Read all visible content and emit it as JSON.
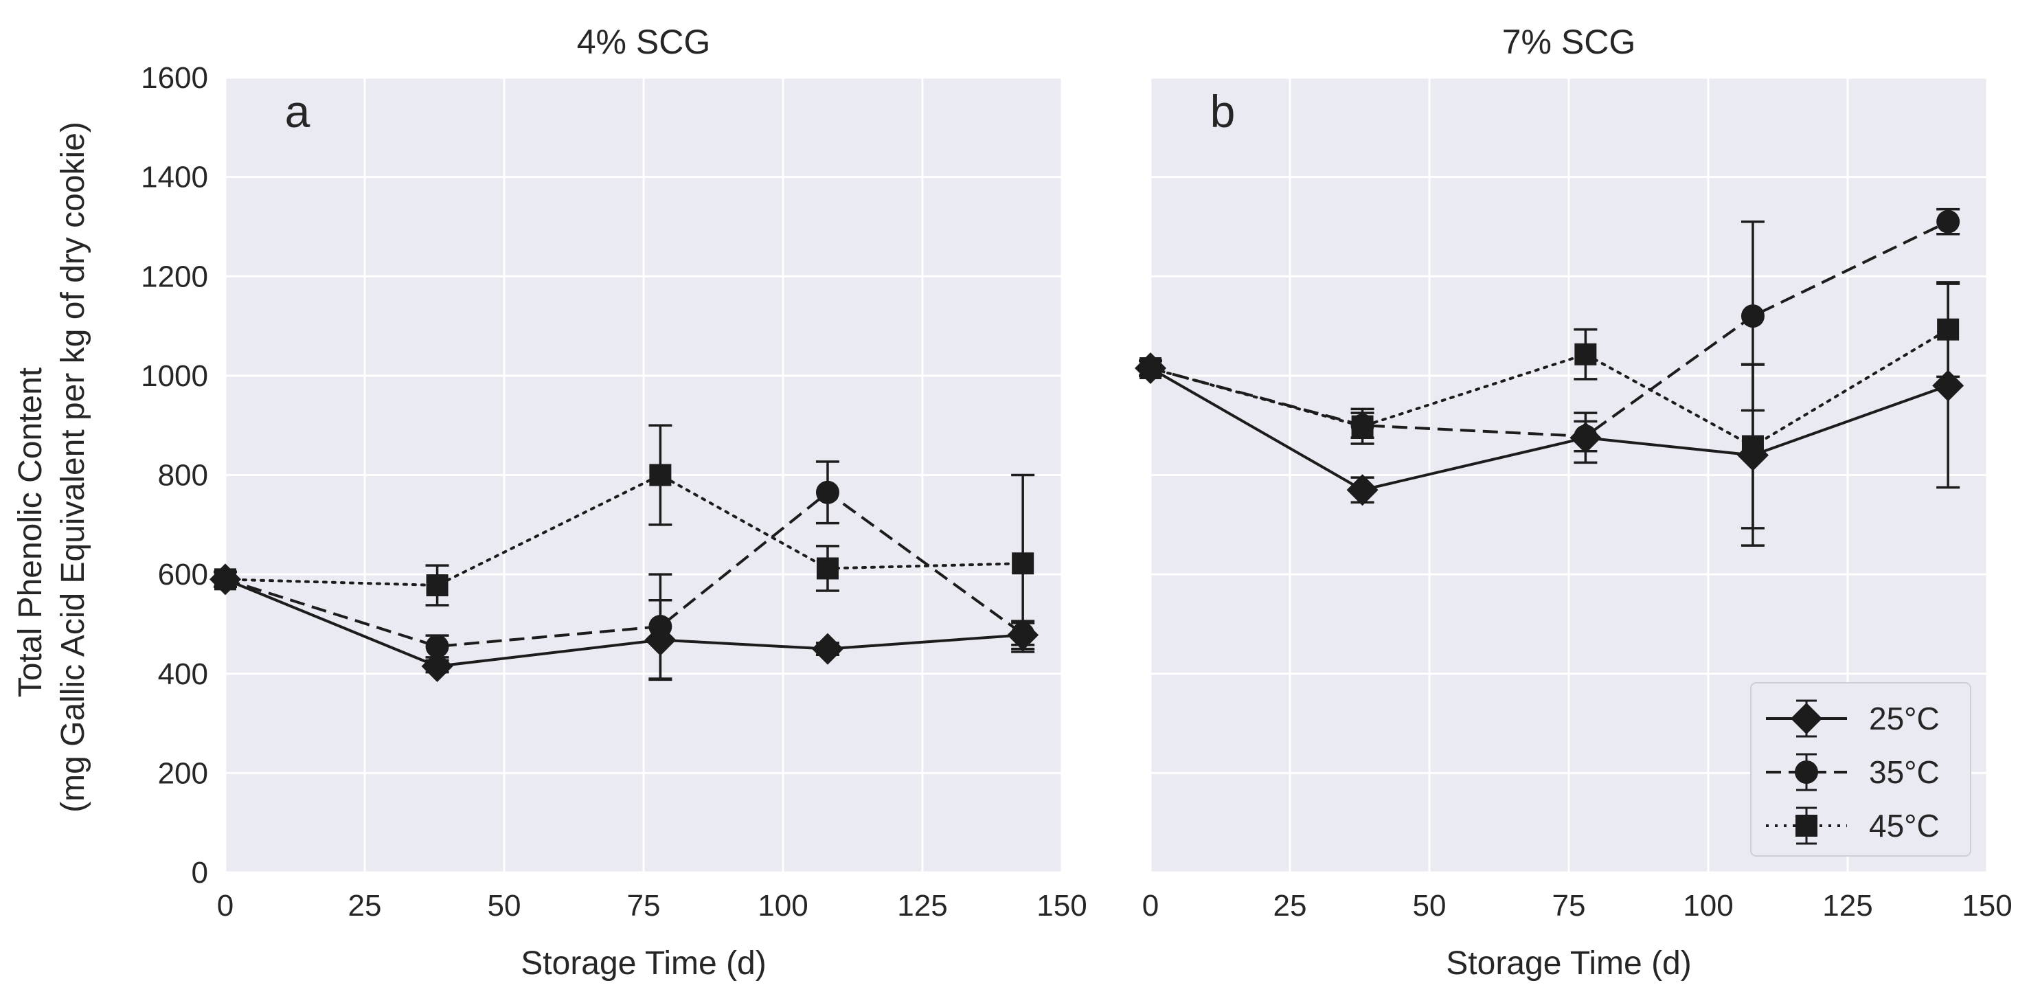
{
  "figure": {
    "ylabel_line1": "Total Phenolic Content",
    "ylabel_line2": "(mg Gallic Acid Equivalent per kg of dry cookie)"
  },
  "chart_data": [
    {
      "type": "line",
      "title": "4% SCG",
      "panel_label": "a",
      "xlabel": "Storage Time (d)",
      "ylabel": "Total Phenolic Content (mg Gallic Acid Equivalent per kg of dry cookie)",
      "xlim": [
        0,
        150
      ],
      "ylim": [
        0,
        1600
      ],
      "xticks": [
        0,
        25,
        50,
        75,
        100,
        125,
        150
      ],
      "yticks": [
        0,
        200,
        400,
        600,
        800,
        1000,
        1200,
        1400,
        1600
      ],
      "grid": true,
      "series": [
        {
          "name": "25°C",
          "marker": "diamond",
          "linestyle": "solid",
          "x": [
            0,
            38,
            78,
            108,
            143
          ],
          "y": [
            590,
            415,
            468,
            450,
            478
          ],
          "err": [
            15,
            12,
            80,
            12,
            28
          ]
        },
        {
          "name": "35°C",
          "marker": "circle",
          "linestyle": "dashed",
          "x": [
            0,
            38,
            78,
            108,
            143
          ],
          "y": [
            590,
            455,
            495,
            765,
            480
          ],
          "err": [
            15,
            22,
            105,
            62,
            22
          ]
        },
        {
          "name": "45°C",
          "marker": "square",
          "linestyle": "dotted",
          "x": [
            0,
            38,
            78,
            108,
            143
          ],
          "y": [
            590,
            578,
            800,
            612,
            622
          ],
          "err": [
            15,
            40,
            100,
            45,
            178
          ]
        }
      ]
    },
    {
      "type": "line",
      "title": "7% SCG",
      "panel_label": "b",
      "xlabel": "Storage Time (d)",
      "ylabel": "",
      "xlim": [
        0,
        150
      ],
      "ylim": [
        0,
        1600
      ],
      "xticks": [
        0,
        25,
        50,
        75,
        100,
        125,
        150
      ],
      "yticks": [
        0,
        200,
        400,
        600,
        800,
        1000,
        1200,
        1400,
        1600
      ],
      "grid": true,
      "legend": {
        "placement": "lower-right",
        "entries": [
          "25°C",
          "35°C",
          "45°C"
        ]
      },
      "series": [
        {
          "name": "25°C",
          "marker": "diamond",
          "linestyle": "solid",
          "x": [
            0,
            38,
            78,
            108,
            143
          ],
          "y": [
            1015,
            770,
            875,
            840,
            980
          ],
          "err": [
            15,
            25,
            50,
            182,
            205
          ]
        },
        {
          "name": "35°C",
          "marker": "circle",
          "linestyle": "dashed",
          "x": [
            0,
            38,
            78,
            108,
            143
          ],
          "y": [
            1015,
            900,
            878,
            1120,
            1310
          ],
          "err": [
            15,
            25,
            30,
            190,
            25
          ]
        },
        {
          "name": "45°C",
          "marker": "square",
          "linestyle": "dotted",
          "x": [
            0,
            38,
            78,
            108,
            143
          ],
          "y": [
            1015,
            898,
            1043,
            858,
            1093
          ],
          "err": [
            15,
            35,
            50,
            165,
            95
          ]
        }
      ]
    }
  ]
}
